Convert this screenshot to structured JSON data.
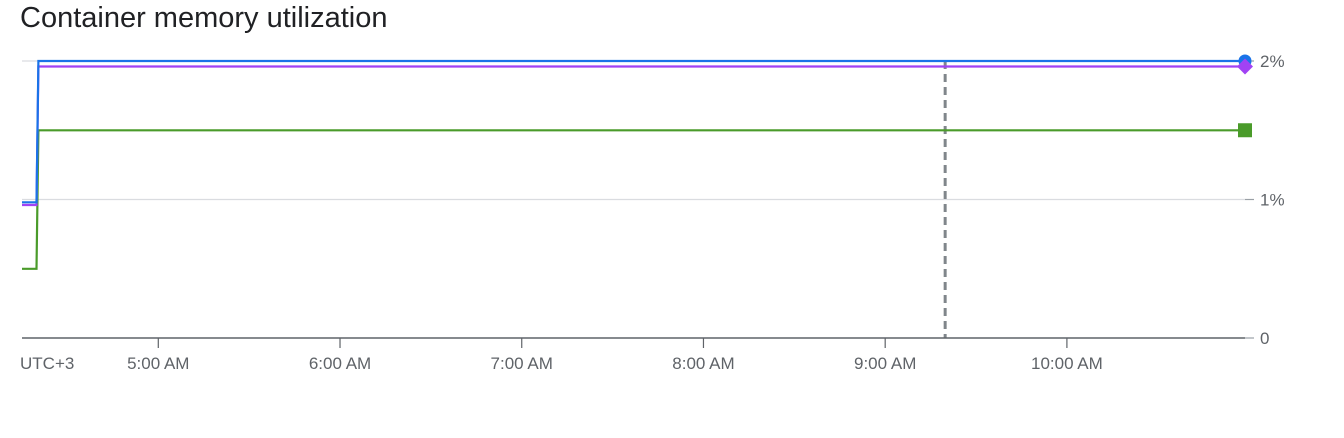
{
  "chart_data": {
    "type": "line",
    "title": "Container memory utilization",
    "timezone_label": "UTC+3",
    "x_tick_labels": [
      "5:00 AM",
      "6:00 AM",
      "7:00 AM",
      "8:00 AM",
      "9:00 AM",
      "10:00 AM"
    ],
    "x_tick_hours": [
      5,
      6,
      7,
      8,
      9,
      10
    ],
    "xlim_hours": [
      4.25,
      10.98
    ],
    "y_tick_labels": [
      "0",
      "1%",
      "2%"
    ],
    "y_tick_values": [
      0,
      1,
      2
    ],
    "ylim": [
      0,
      2
    ],
    "grid": true,
    "marker_line_hour": 9.33,
    "series": [
      {
        "color": "#1a73e8",
        "marker": "circle",
        "points": [
          [
            4.25,
            0.98
          ],
          [
            4.33,
            0.98
          ],
          [
            4.34,
            2.0
          ],
          [
            10.98,
            2.0
          ]
        ]
      },
      {
        "color": "#a142f4",
        "marker": "diamond",
        "points": [
          [
            4.25,
            0.96
          ],
          [
            4.33,
            0.96
          ],
          [
            4.34,
            1.96
          ],
          [
            10.98,
            1.96
          ]
        ]
      },
      {
        "color": "#4a9b2a",
        "marker": "square",
        "points": [
          [
            4.25,
            0.5
          ],
          [
            4.33,
            0.5
          ],
          [
            4.34,
            1.5
          ],
          [
            10.98,
            1.5
          ]
        ]
      }
    ]
  }
}
